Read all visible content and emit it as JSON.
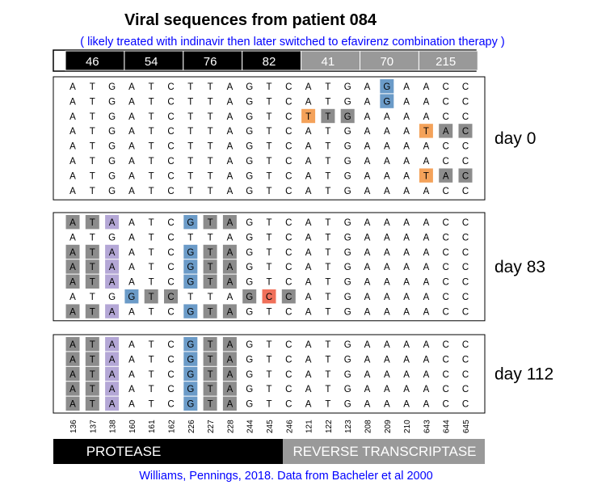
{
  "title": "Viral sequences from patient 084",
  "subtitle": "( likely treated with indinavir then later switched to efavirenz combination therapy )",
  "credit": "Williams, Pennings, 2018. Data from Bacheler et al 2000",
  "colors": {
    "protease": "#000000",
    "rt": "#999999",
    "codon_bg": "#8c8c8c",
    "site_bg": "#b4a7d6",
    "mut_blue": "#6b9bc8",
    "mut_orange": "#f4a25a",
    "mut_red": "#f0705a"
  },
  "codons": [
    {
      "label": "46",
      "gene": "protease"
    },
    {
      "label": "54",
      "gene": "protease"
    },
    {
      "label": "76",
      "gene": "protease"
    },
    {
      "label": "82",
      "gene": "protease"
    },
    {
      "label": "41",
      "gene": "rt"
    },
    {
      "label": "70",
      "gene": "rt"
    },
    {
      "label": "215",
      "gene": "rt"
    }
  ],
  "positions": [
    "136",
    "137",
    "138",
    "160",
    "161",
    "162",
    "226",
    "227",
    "228",
    "244",
    "245",
    "246",
    "121",
    "122",
    "123",
    "208",
    "209",
    "210",
    "643",
    "644",
    "645"
  ],
  "genes": [
    {
      "label": "PROTEASE",
      "gene": "protease"
    },
    {
      "label": "REVERSE TRANSCRIPTASE",
      "gene": "rt"
    }
  ],
  "groups": [
    {
      "day": "day 0",
      "rows": [
        {
          "seq": "ATGATCTTAGTCATGAGAACC",
          "hl": [
            [
              16,
              "blue"
            ]
          ]
        },
        {
          "seq": "ATGATCTTAGTCATGAGAACC",
          "hl": [
            [
              16,
              "blue"
            ]
          ]
        },
        {
          "seq": "ATGATCTTAGTCTTGAAAACC",
          "hl": [
            [
              12,
              "orange"
            ],
            [
              13,
              "gray"
            ],
            [
              14,
              "gray"
            ]
          ]
        },
        {
          "seq": "ATGATCTTAGTCATGAAATAC",
          "hl": [
            [
              18,
              "orange"
            ],
            [
              19,
              "gray"
            ],
            [
              20,
              "gray"
            ]
          ]
        },
        {
          "seq": "ATGATCTTAGTCATGAAAACC",
          "hl": []
        },
        {
          "seq": "ATGATCTTAGTCATGAAAACC",
          "hl": []
        },
        {
          "seq": "ATGATCTTAGTCATGAAATAC",
          "hl": [
            [
              18,
              "orange"
            ],
            [
              19,
              "gray"
            ],
            [
              20,
              "gray"
            ]
          ]
        },
        {
          "seq": "ATGATCTTAGTCATGAAAACC",
          "hl": []
        }
      ]
    },
    {
      "day": "day 83",
      "rows": [
        {
          "seq": "ATAATCGTAGTCATGAAAACC",
          "hl": [
            [
              0,
              "gray"
            ],
            [
              1,
              "gray"
            ],
            [
              2,
              "purple"
            ],
            [
              6,
              "blue"
            ],
            [
              7,
              "gray"
            ],
            [
              8,
              "gray"
            ]
          ]
        },
        {
          "seq": "ATGATCTTAGTCATGAAAACC",
          "hl": []
        },
        {
          "seq": "ATAATCGTAGTCATGAAAACC",
          "hl": [
            [
              0,
              "gray"
            ],
            [
              1,
              "gray"
            ],
            [
              2,
              "purple"
            ],
            [
              6,
              "blue"
            ],
            [
              7,
              "gray"
            ],
            [
              8,
              "gray"
            ]
          ]
        },
        {
          "seq": "ATAATCGTAGTCATGAAAACC",
          "hl": [
            [
              0,
              "gray"
            ],
            [
              1,
              "gray"
            ],
            [
              2,
              "purple"
            ],
            [
              6,
              "blue"
            ],
            [
              7,
              "gray"
            ],
            [
              8,
              "gray"
            ]
          ]
        },
        {
          "seq": "ATAATCGTAGTCATGAAAACC",
          "hl": [
            [
              0,
              "gray"
            ],
            [
              1,
              "gray"
            ],
            [
              2,
              "purple"
            ],
            [
              6,
              "blue"
            ],
            [
              7,
              "gray"
            ],
            [
              8,
              "gray"
            ]
          ]
        },
        {
          "seq": "ATGGTCTTAGCCATGAAAACC",
          "hl": [
            [
              3,
              "blue"
            ],
            [
              4,
              "gray"
            ],
            [
              5,
              "gray"
            ],
            [
              9,
              "gray"
            ],
            [
              10,
              "red"
            ],
            [
              11,
              "gray"
            ]
          ]
        },
        {
          "seq": "ATAATCGTAGTCATGAAAACC",
          "hl": [
            [
              0,
              "gray"
            ],
            [
              1,
              "gray"
            ],
            [
              2,
              "purple"
            ],
            [
              6,
              "blue"
            ],
            [
              7,
              "gray"
            ],
            [
              8,
              "gray"
            ]
          ]
        }
      ]
    },
    {
      "day": "day 112",
      "rows": [
        {
          "seq": "ATAATCGTAGTCATGAAAACC",
          "hl": [
            [
              0,
              "gray"
            ],
            [
              1,
              "gray"
            ],
            [
              2,
              "purple"
            ],
            [
              6,
              "blue"
            ],
            [
              7,
              "gray"
            ],
            [
              8,
              "gray"
            ]
          ]
        },
        {
          "seq": "ATAATCGTAGTCATGAAAACC",
          "hl": [
            [
              0,
              "gray"
            ],
            [
              1,
              "gray"
            ],
            [
              2,
              "purple"
            ],
            [
              6,
              "blue"
            ],
            [
              7,
              "gray"
            ],
            [
              8,
              "gray"
            ]
          ]
        },
        {
          "seq": "ATAATCGTAGTCATGAAAACC",
          "hl": [
            [
              0,
              "gray"
            ],
            [
              1,
              "gray"
            ],
            [
              2,
              "purple"
            ],
            [
              6,
              "blue"
            ],
            [
              7,
              "gray"
            ],
            [
              8,
              "gray"
            ]
          ]
        },
        {
          "seq": "ATAATCGTAGTCATGAAAACC",
          "hl": [
            [
              0,
              "gray"
            ],
            [
              1,
              "gray"
            ],
            [
              2,
              "purple"
            ],
            [
              6,
              "blue"
            ],
            [
              7,
              "gray"
            ],
            [
              8,
              "gray"
            ]
          ]
        },
        {
          "seq": "ATAATCGTAGTCATGAAAACC",
          "hl": [
            [
              0,
              "gray"
            ],
            [
              1,
              "gray"
            ],
            [
              2,
              "purple"
            ],
            [
              6,
              "blue"
            ],
            [
              7,
              "gray"
            ],
            [
              8,
              "gray"
            ]
          ]
        }
      ]
    }
  ]
}
